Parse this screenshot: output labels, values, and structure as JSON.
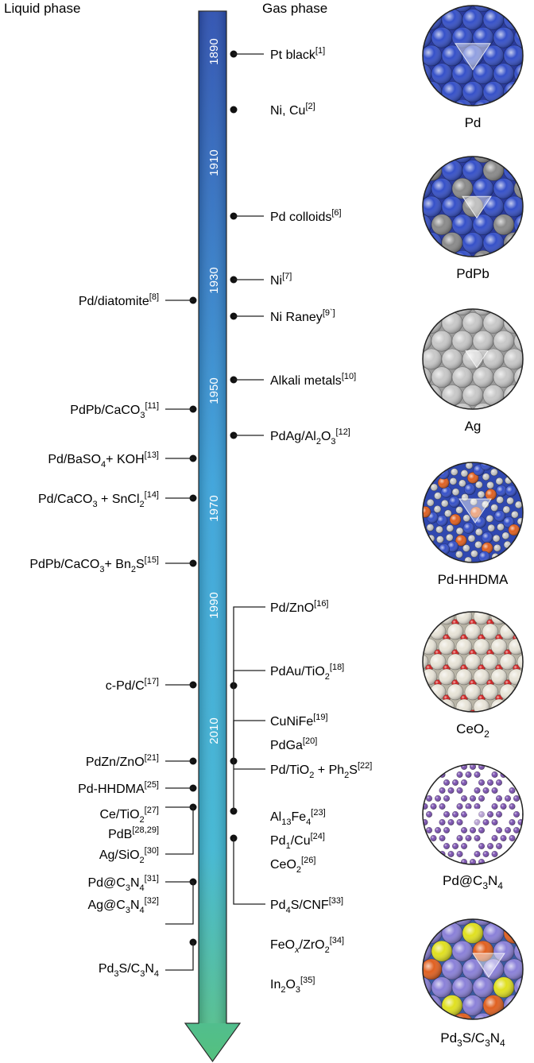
{
  "headers": {
    "liquid": "Liquid phase",
    "gas": "Gas phase"
  },
  "years": [
    "1890",
    "1910",
    "1930",
    "1950",
    "1970",
    "1990",
    "2010"
  ],
  "gas_labels": {
    "pt_black": [
      "Pt black",
      "[1]"
    ],
    "ni_cu": [
      "Ni, Cu",
      "[2]"
    ],
    "pd_colloids": [
      "Pd colloids",
      "[6]"
    ],
    "ni": [
      "Ni",
      "[7]"
    ],
    "ni_raney": [
      "Ni Raney",
      "[9`]"
    ],
    "alkali": [
      "Alkali metals",
      "[10]"
    ],
    "pdag_a": "PdAg/Al",
    "pdag_b": "2",
    "pdag_c": "O",
    "pdag_d": "3",
    "pdag_e": "[12]",
    "pdzno_a": "Pd/ZnO",
    "pdzno_b": "[16]",
    "pdau_a": "PdAu/TiO",
    "pdau_b": "2",
    "pdau_c": "[18]",
    "cunife_a": "CuNiFe",
    "cunife_b": "[19]",
    "pdga_a": "PdGa",
    "pdga_b": "[20]",
    "pdtio2_a": "Pd/TiO",
    "pdtio2_b": "2",
    "pdtio2_c": " + Ph",
    "pdtio2_d": "2",
    "pdtio2_e": "S",
    "pdtio2_f": "[22]",
    "alfe_a": "Al",
    "alfe_b": "13",
    "alfe_c": "Fe",
    "alfe_d": "4",
    "alfe_e": "[23]",
    "pd1cu_a": "Pd",
    "pd1cu_b": "1",
    "pd1cu_c": "/Cu",
    "pd1cu_d": "[24]",
    "ceo2_a": "CeO",
    "ceo2_b": "2",
    "ceo2_c": "[26]",
    "pd4s_a": "Pd",
    "pd4s_b": "4",
    "pd4s_c": "S/CNF",
    "pd4s_d": "[33]",
    "feox_a": "FeO",
    "feox_b": "x",
    "feox_c": "/ZrO",
    "feox_d": "2",
    "feox_e": "[34]",
    "in2o3_a": "In",
    "in2o3_b": "2",
    "in2o3_c": "O",
    "in2o3_d": "3",
    "in2o3_e": "[35]"
  },
  "liquid_labels": {
    "diatomite_a": "Pd/diatomite",
    "diatomite_b": "[8]",
    "pdpb_a": "PdPb/CaCO",
    "pdpb_b": "3",
    "pdpb_c": "[11]",
    "baso4_a": "Pd/BaSO",
    "baso4_b": "4",
    "baso4_c": "+ KOH",
    "baso4_d": "[13]",
    "caco3_a": "Pd/CaCO",
    "caco3_b": "3",
    "caco3_c": " + SnCl",
    "caco3_d": "2",
    "caco3_e": "[14]",
    "bn2s_a": "PdPb/CaCO",
    "bn2s_b": "3",
    "bn2s_c": "+ Bn",
    "bn2s_d": "2",
    "bn2s_e": "S",
    "bn2s_f": "[15]",
    "cpdc_a": "c-Pd/C",
    "cpdc_b": "[17]",
    "pdzn_a": "PdZn/ZnO",
    "pdzn_b": "[21]",
    "hhdma_a": "Pd-HHDMA",
    "hhdma_b": "[25]",
    "cetio2_a": "Ce/TiO",
    "cetio2_b": "2",
    "cetio2_c": "[27]",
    "pdb_a": "PdB",
    "pdb_b": "[28,29]",
    "agsio2_a": "Ag/SiO",
    "agsio2_b": "2",
    "agsio2_c": "[30]",
    "pdc3n4_a": "Pd@C",
    "pdc3n4_b": "3",
    "pdc3n4_c": "N",
    "pdc3n4_d": "4",
    "pdc3n4_e": "[31]",
    "agc3n4_a": "Ag@C",
    "agc3n4_b": "3",
    "agc3n4_c": "N",
    "agc3n4_d": "4",
    "agc3n4_e": "[32]",
    "pd3s_a": "Pd",
    "pd3s_b": "3",
    "pd3s_c": "S/C",
    "pd3s_d": "3",
    "pd3s_e": "N",
    "pd3s_f": "4"
  },
  "captions": {
    "pd": "Pd",
    "pdpb": "PdPb",
    "ag": "Ag",
    "hhdma": "Pd-HHDMA",
    "ceo2_a": "CeO",
    "ceo2_b": "2",
    "pdc3n4_a": "Pd@C",
    "pdc3n4_b": "3",
    "pdc3n4_c": "N",
    "pdc3n4_d": "4",
    "pd3s_a": "Pd",
    "pd3s_b": "3",
    "pd3s_c": "S/C",
    "pd3s_d": "3",
    "pd3s_e": "N",
    "pd3s_f": "4"
  },
  "colors": {
    "arrow_top": "#2f55b0",
    "arrow_mid": "#3aa6d8",
    "arrow_bottom": "#4dbb8a",
    "pd_atom": "#3550c8",
    "pb_atom": "#8a8a8a",
    "ag_atom": "#c8c8c8",
    "ce_atom": "#e8e4d8",
    "o_atom": "#d02020",
    "c3n4_atom": "#7a50b0",
    "pd3s_atom": "#8a80d8",
    "s_atom": "#e0e020",
    "orange_atom": "#e06020"
  }
}
